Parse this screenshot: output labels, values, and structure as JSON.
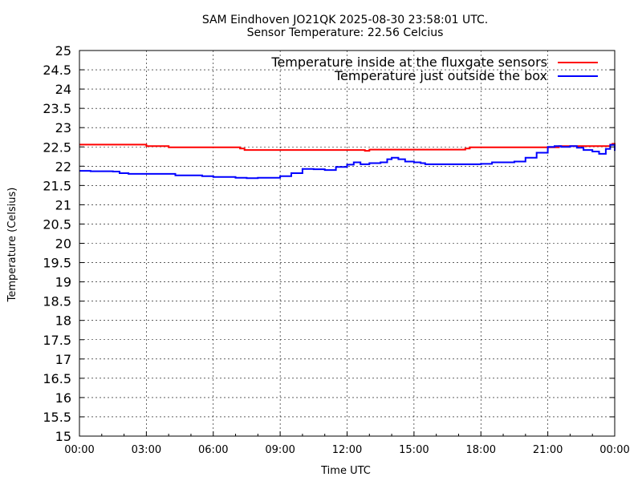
{
  "chart_data": {
    "type": "line",
    "title": "SAM Eindhoven JO21QK 2025-08-30 23:58:01 UTC.",
    "subtitle": "Sensor Temperature: 22.56 Celcius",
    "xlabel": "Time UTC",
    "ylabel": "Temperature (Celsius)",
    "xlim": [
      0,
      24
    ],
    "ylim": [
      15,
      25
    ],
    "grid": true,
    "legend_position": "top-right",
    "x_ticks": [
      "00:00",
      "03:00",
      "06:00",
      "09:00",
      "12:00",
      "15:00",
      "18:00",
      "21:00",
      "00:00"
    ],
    "y_ticks": [
      "15",
      "15.5",
      "16",
      "16.5",
      "17",
      "17.5",
      "18",
      "18.5",
      "19",
      "19.5",
      "20",
      "20.5",
      "21",
      "21.5",
      "22",
      "22.5",
      "23",
      "23.5",
      "24",
      "24.5",
      "25"
    ],
    "series": [
      {
        "name": "Temperature inside at the fluxgate sensors",
        "color": "#ff0000",
        "x": [
          0,
          2.9,
          3.0,
          3.8,
          4.0,
          6.5,
          7.2,
          7.4,
          10.8,
          12.8,
          13.0,
          16.0,
          17.3,
          17.5,
          21.0,
          21.5,
          23.8,
          23.9,
          24
        ],
        "y": [
          22.56,
          22.56,
          22.52,
          22.52,
          22.49,
          22.49,
          22.46,
          22.42,
          22.42,
          22.4,
          22.43,
          22.43,
          22.46,
          22.49,
          22.49,
          22.52,
          22.56,
          22.58,
          22.56
        ]
      },
      {
        "name": "Temperature just outside the box",
        "color": "#0000ff",
        "x": [
          0,
          0.5,
          1.5,
          1.8,
          2.2,
          4.0,
          4.3,
          5.5,
          6.0,
          7.0,
          7.5,
          8.0,
          9.0,
          9.5,
          10.0,
          10.5,
          11.0,
          11.5,
          12.0,
          12.3,
          12.6,
          13.0,
          13.5,
          13.8,
          14.0,
          14.3,
          14.6,
          15.0,
          15.3,
          15.5,
          17.0,
          18.0,
          18.5,
          19.5,
          20.0,
          20.5,
          21.0,
          21.3,
          21.6,
          22.0,
          22.3,
          22.6,
          23.0,
          23.3,
          23.6,
          23.8,
          24.0
        ],
        "y": [
          21.88,
          21.87,
          21.86,
          21.82,
          21.8,
          21.8,
          21.76,
          21.74,
          21.72,
          21.7,
          21.69,
          21.7,
          21.74,
          21.82,
          21.93,
          21.92,
          21.9,
          21.98,
          22.04,
          22.1,
          22.05,
          22.08,
          22.1,
          22.18,
          22.22,
          22.18,
          22.12,
          22.1,
          22.08,
          22.05,
          22.05,
          22.06,
          22.1,
          22.12,
          22.22,
          22.35,
          22.5,
          22.52,
          22.5,
          22.52,
          22.48,
          22.42,
          22.38,
          22.32,
          22.45,
          22.55,
          22.4
        ]
      }
    ]
  }
}
